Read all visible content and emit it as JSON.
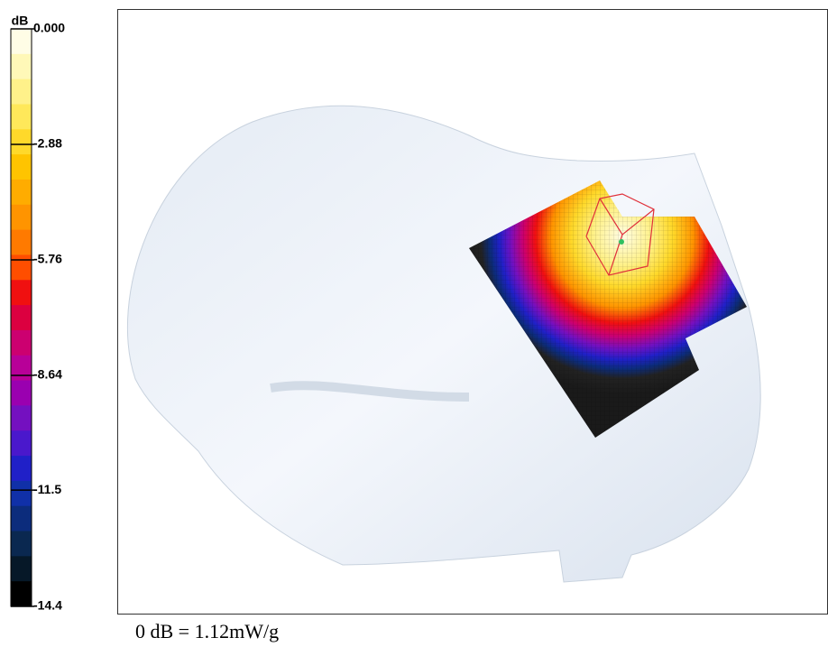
{
  "colorbar": {
    "unit": "dB",
    "lim": [
      -14.4,
      0
    ],
    "ticks": [
      {
        "value": 0,
        "label": "0.000"
      },
      -2.88,
      -5.76,
      -8.64,
      -11.5,
      -14.4
    ],
    "colors": [
      "#fffde6",
      "#fff8b8",
      "#fff18a",
      "#ffe85a",
      "#ffd92a",
      "#ffc400",
      "#ffac00",
      "#ff9400",
      "#ff7a00",
      "#ff4e00",
      "#f01010",
      "#dc0040",
      "#cc0070",
      "#b80098",
      "#9a00b0",
      "#7410c0",
      "#4a18cc",
      "#2020c8",
      "#1030a8",
      "#0c2c7c",
      "#0a2850",
      "#061828",
      "#000000"
    ]
  },
  "caption": "0 dB = 1.12mW/g"
}
